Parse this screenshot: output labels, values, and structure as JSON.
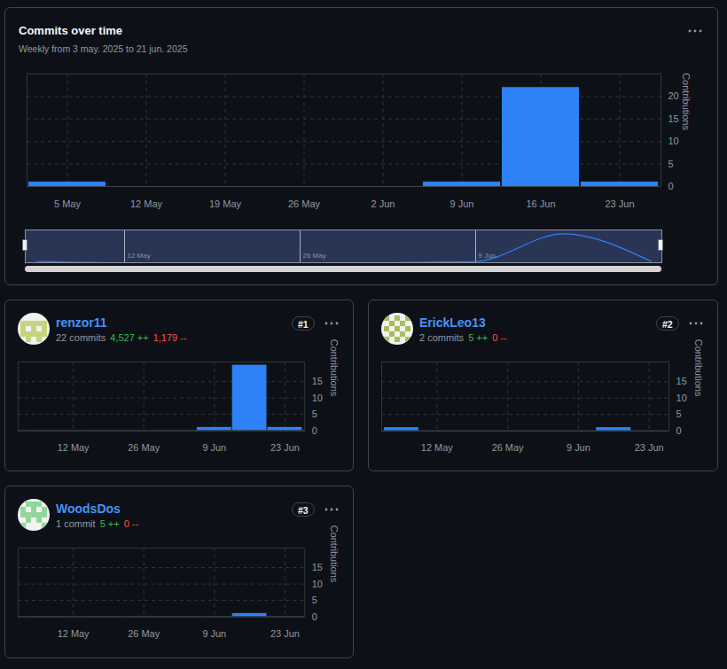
{
  "chart_data": [
    {
      "type": "bar",
      "title": "Commits over time",
      "subtitle": "Weekly from 3 may. 2025 to 21 jun. 2025",
      "y_label": "Contributions",
      "categories": [
        "5 May",
        "12 May",
        "19 May",
        "26 May",
        "2 Jun",
        "9 Jun",
        "16 Jun",
        "23 Jun"
      ],
      "values": [
        1,
        0,
        0,
        0,
        0,
        1,
        22,
        1
      ],
      "color": "#2f81f7",
      "ylim": [
        0,
        25
      ],
      "yticks": [
        0,
        5,
        10,
        15,
        20
      ],
      "grid": true
    },
    {
      "type": "line",
      "categories": [
        null,
        "12 May",
        null,
        "26 May",
        null,
        "9 Jun",
        null,
        null
      ],
      "values": [
        1,
        0,
        0,
        0,
        0,
        1,
        22,
        1
      ],
      "color": "#2f81f7",
      "ylim": [
        0,
        25
      ],
      "grid": true,
      "tick_labels": "x"
    },
    {
      "type": "bar",
      "title": "renzor11",
      "commits": "22 commits",
      "additions": "4,527 ++",
      "deletions": "1,179 --",
      "rank": "#1",
      "y_label": "Contributions",
      "categories": [
        null,
        "12 May",
        null,
        "26 May",
        null,
        "9 Jun",
        null,
        "23 Jun"
      ],
      "values": [
        0,
        0,
        0,
        0,
        0,
        1,
        20,
        1
      ],
      "color": "#2f81f7",
      "ylim": [
        0,
        21
      ],
      "yticks": [
        0,
        5,
        10,
        15
      ],
      "grid": true
    },
    {
      "type": "bar",
      "title": "ErickLeo13",
      "commits": "2 commits",
      "additions": "5 ++",
      "deletions": "0 --",
      "rank": "#2",
      "y_label": "Contributions",
      "categories": [
        null,
        "12 May",
        null,
        "26 May",
        null,
        "9 Jun",
        null,
        "23 Jun"
      ],
      "values": [
        1,
        0,
        0,
        0,
        0,
        0,
        1,
        0
      ],
      "color": "#2f81f7",
      "ylim": [
        0,
        21
      ],
      "yticks": [
        0,
        5,
        10,
        15
      ],
      "grid": true
    },
    {
      "type": "bar",
      "title": "WoodsDos",
      "commits": "1 commit",
      "additions": "5 ++",
      "deletions": "0 --",
      "rank": "#3",
      "y_label": "Contributions",
      "categories": [
        null,
        "12 May",
        null,
        "26 May",
        null,
        "9 Jun",
        null,
        "23 Jun"
      ],
      "values": [
        0,
        0,
        0,
        0,
        0,
        0,
        1,
        0
      ],
      "color": "#2f81f7",
      "ylim": [
        0,
        21
      ],
      "yticks": [
        0,
        5,
        10,
        15
      ],
      "grid": true
    }
  ]
}
